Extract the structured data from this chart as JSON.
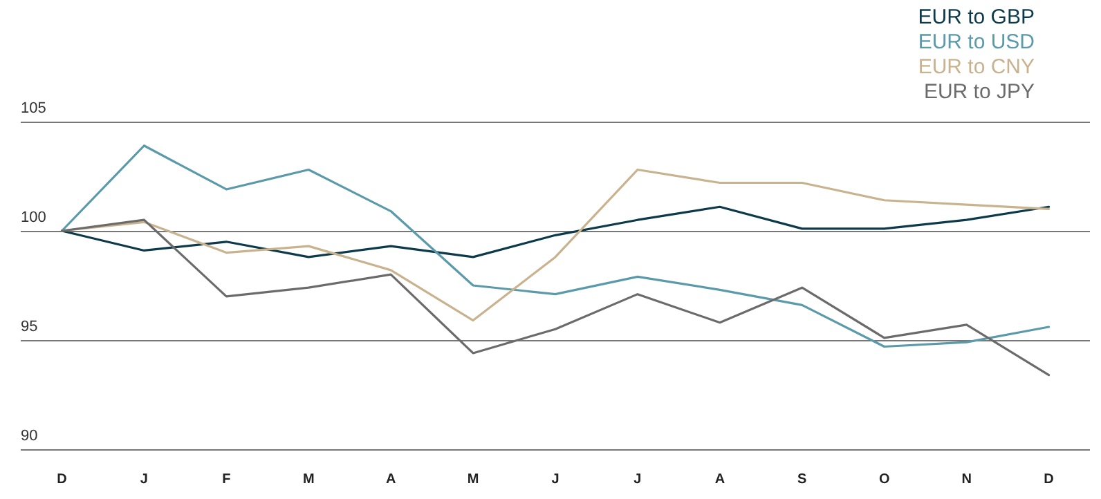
{
  "chart_data": {
    "type": "line",
    "categories": [
      "D",
      "J",
      "F",
      "M",
      "A",
      "M",
      "J",
      "J",
      "A",
      "S",
      "O",
      "N",
      "D"
    ],
    "series": [
      {
        "name": "EUR to GBP",
        "color": "#0d3a4a",
        "values": [
          100,
          99.1,
          99.5,
          98.8,
          99.3,
          98.8,
          99.8,
          100.5,
          101.1,
          100.1,
          100.1,
          100.5,
          101.1
        ]
      },
      {
        "name": "EUR to USD",
        "color": "#5b9aaa",
        "values": [
          100,
          103.9,
          101.9,
          102.8,
          100.9,
          97.5,
          97.1,
          97.9,
          97.3,
          96.6,
          94.7,
          94.9,
          95.6
        ]
      },
      {
        "name": "EUR to CNY",
        "color": "#c9b38e",
        "values": [
          100,
          100.4,
          99.0,
          99.3,
          98.2,
          95.9,
          98.8,
          102.8,
          102.2,
          102.2,
          101.4,
          101.2,
          101.0
        ]
      },
      {
        "name": "EUR to JPY",
        "color": "#6b6b6b",
        "values": [
          100,
          100.5,
          97.0,
          97.4,
          98.0,
          94.4,
          95.5,
          97.1,
          95.8,
          97.4,
          95.1,
          95.7,
          93.4
        ]
      }
    ],
    "ylim": [
      90,
      105
    ],
    "yticks": [
      90,
      95,
      100,
      105
    ],
    "grid": "y",
    "legend": "top right",
    "marker": "none",
    "line_style": "solid"
  }
}
